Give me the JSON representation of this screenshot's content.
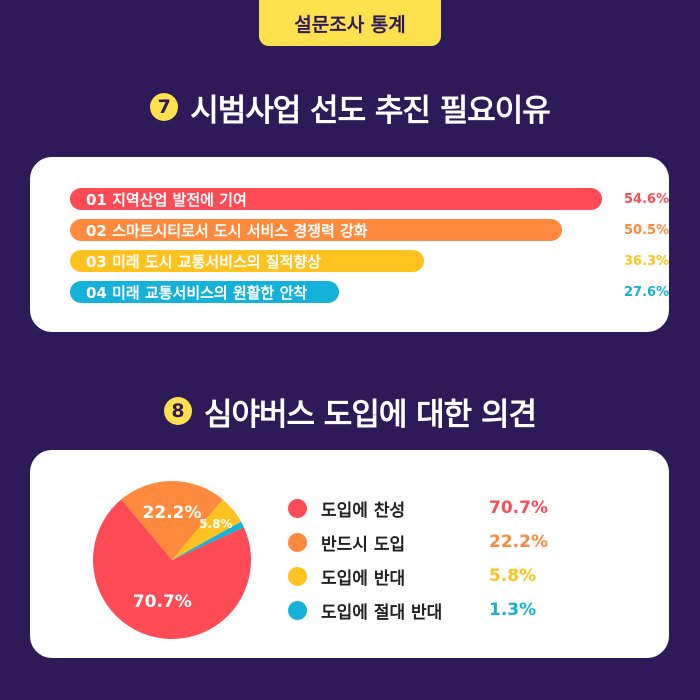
{
  "header": {
    "tag": "설문조사 통계"
  },
  "section1": {
    "number": "7",
    "title": "시범사업 선도 추진 필요이유"
  },
  "section2": {
    "number": "8",
    "title": "심야버스 도입에 대한 의견"
  },
  "chart_data": [
    {
      "type": "bar",
      "orientation": "horizontal",
      "categories": [
        "01  지역산업 발전에 기여",
        "02  스마트시티로서 도시 서비스 경쟁력 강화",
        "03  미래 도시 교통서비스의 질적향상",
        "04  미래 교통서비스의 원활한 안착"
      ],
      "values": [
        54.6,
        50.5,
        36.3,
        27.6
      ],
      "value_labels": [
        "54.6%",
        "50.5%",
        "36.3%",
        "27.6%"
      ],
      "colors": [
        "#ff4b55",
        "#ff8a3d",
        "#ffc21f",
        "#16b1d9"
      ],
      "xlim": [
        0,
        54.6
      ]
    },
    {
      "type": "pie",
      "categories": [
        "도입에 찬성",
        "반드시 도입",
        "도입에 반대",
        "도입에 절대 반대"
      ],
      "values": [
        70.7,
        22.2,
        5.8,
        1.3
      ],
      "value_labels": [
        "70.7%",
        "22.2%",
        "5.8%",
        "1.3%"
      ],
      "slice_labels": [
        "70.7%",
        "22.2%",
        "5.8%",
        ""
      ],
      "colors": [
        "#ff4b55",
        "#ff8a3d",
        "#ffc21f",
        "#16b1d9"
      ],
      "legend_placement": "right"
    }
  ]
}
